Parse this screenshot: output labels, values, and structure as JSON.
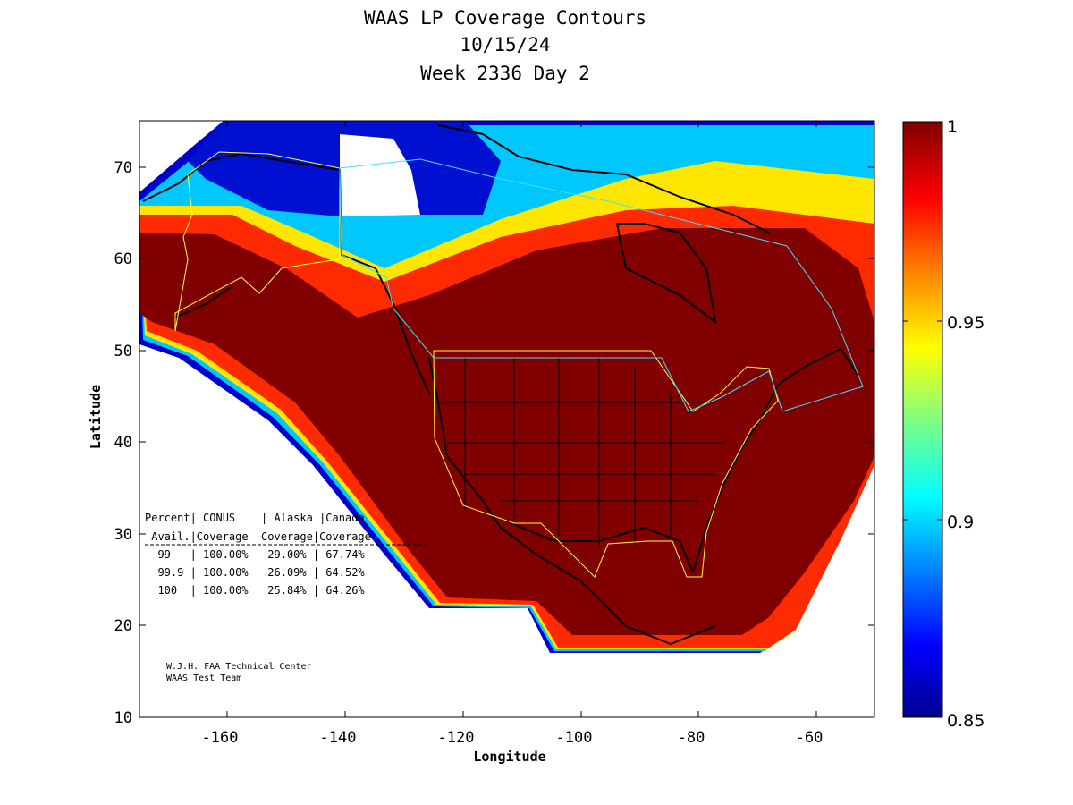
{
  "title": {
    "line1": "WAAS LP Coverage Contours",
    "line2": "10/15/24",
    "line3": "Week 2336 Day 2"
  },
  "axes": {
    "xlabel": "Longitude",
    "ylabel": "Latitude",
    "xlim": [
      -175,
      -50
    ],
    "ylim": [
      10,
      75
    ],
    "xticks": [
      "-160",
      "-140",
      "-120",
      "-100",
      "-80",
      "-60"
    ],
    "yticks": [
      "10",
      "20",
      "30",
      "40",
      "50",
      "60",
      "70"
    ]
  },
  "colorbar": {
    "range": [
      0.85,
      1.0
    ],
    "ticks": [
      "1",
      "0.95",
      "0.9",
      "0.85"
    ],
    "colormap": "jet",
    "colors": [
      "#00008f",
      "#0000ff",
      "#0080ff",
      "#00ffff",
      "#80ff80",
      "#ffff00",
      "#ff8000",
      "#ff0000",
      "#800000"
    ]
  },
  "stats_table": {
    "header1": "Percent| CONUS    | Alaska |Canada",
    "header2": " Avail.|Coverage |Coverage|Coverage",
    "rows": [
      "  99   | 100.00% | 29.00% | 67.74%",
      "  99.9 | 100.00% | 26.09% | 64.52%",
      "  100  | 100.00% | 25.84% | 64.26%"
    ]
  },
  "credit": {
    "line1": "W.J.H. FAA Technical Center",
    "line2": "WAAS Test Team"
  },
  "chart_data": {
    "type": "heatmap",
    "title": "WAAS LP Coverage Contours",
    "subtitle": [
      "10/15/24",
      "Week 2336 Day 2"
    ],
    "xlabel": "Longitude",
    "ylabel": "Latitude",
    "xlim": [
      -175,
      -50
    ],
    "ylim": [
      10,
      75
    ],
    "colorbar_range": [
      0.85,
      1.0
    ],
    "regions": [
      {
        "name": "CONUS",
        "availability_99": "100.00%",
        "availability_99_9": "100.00%",
        "availability_100": "100.00%"
      },
      {
        "name": "Alaska",
        "availability_99": "29.00%",
        "availability_99_9": "26.09%",
        "availability_100": "25.84%"
      },
      {
        "name": "Canada",
        "availability_99": "67.74%",
        "availability_99_9": "64.52%",
        "availability_100": "64.26%"
      }
    ]
  }
}
